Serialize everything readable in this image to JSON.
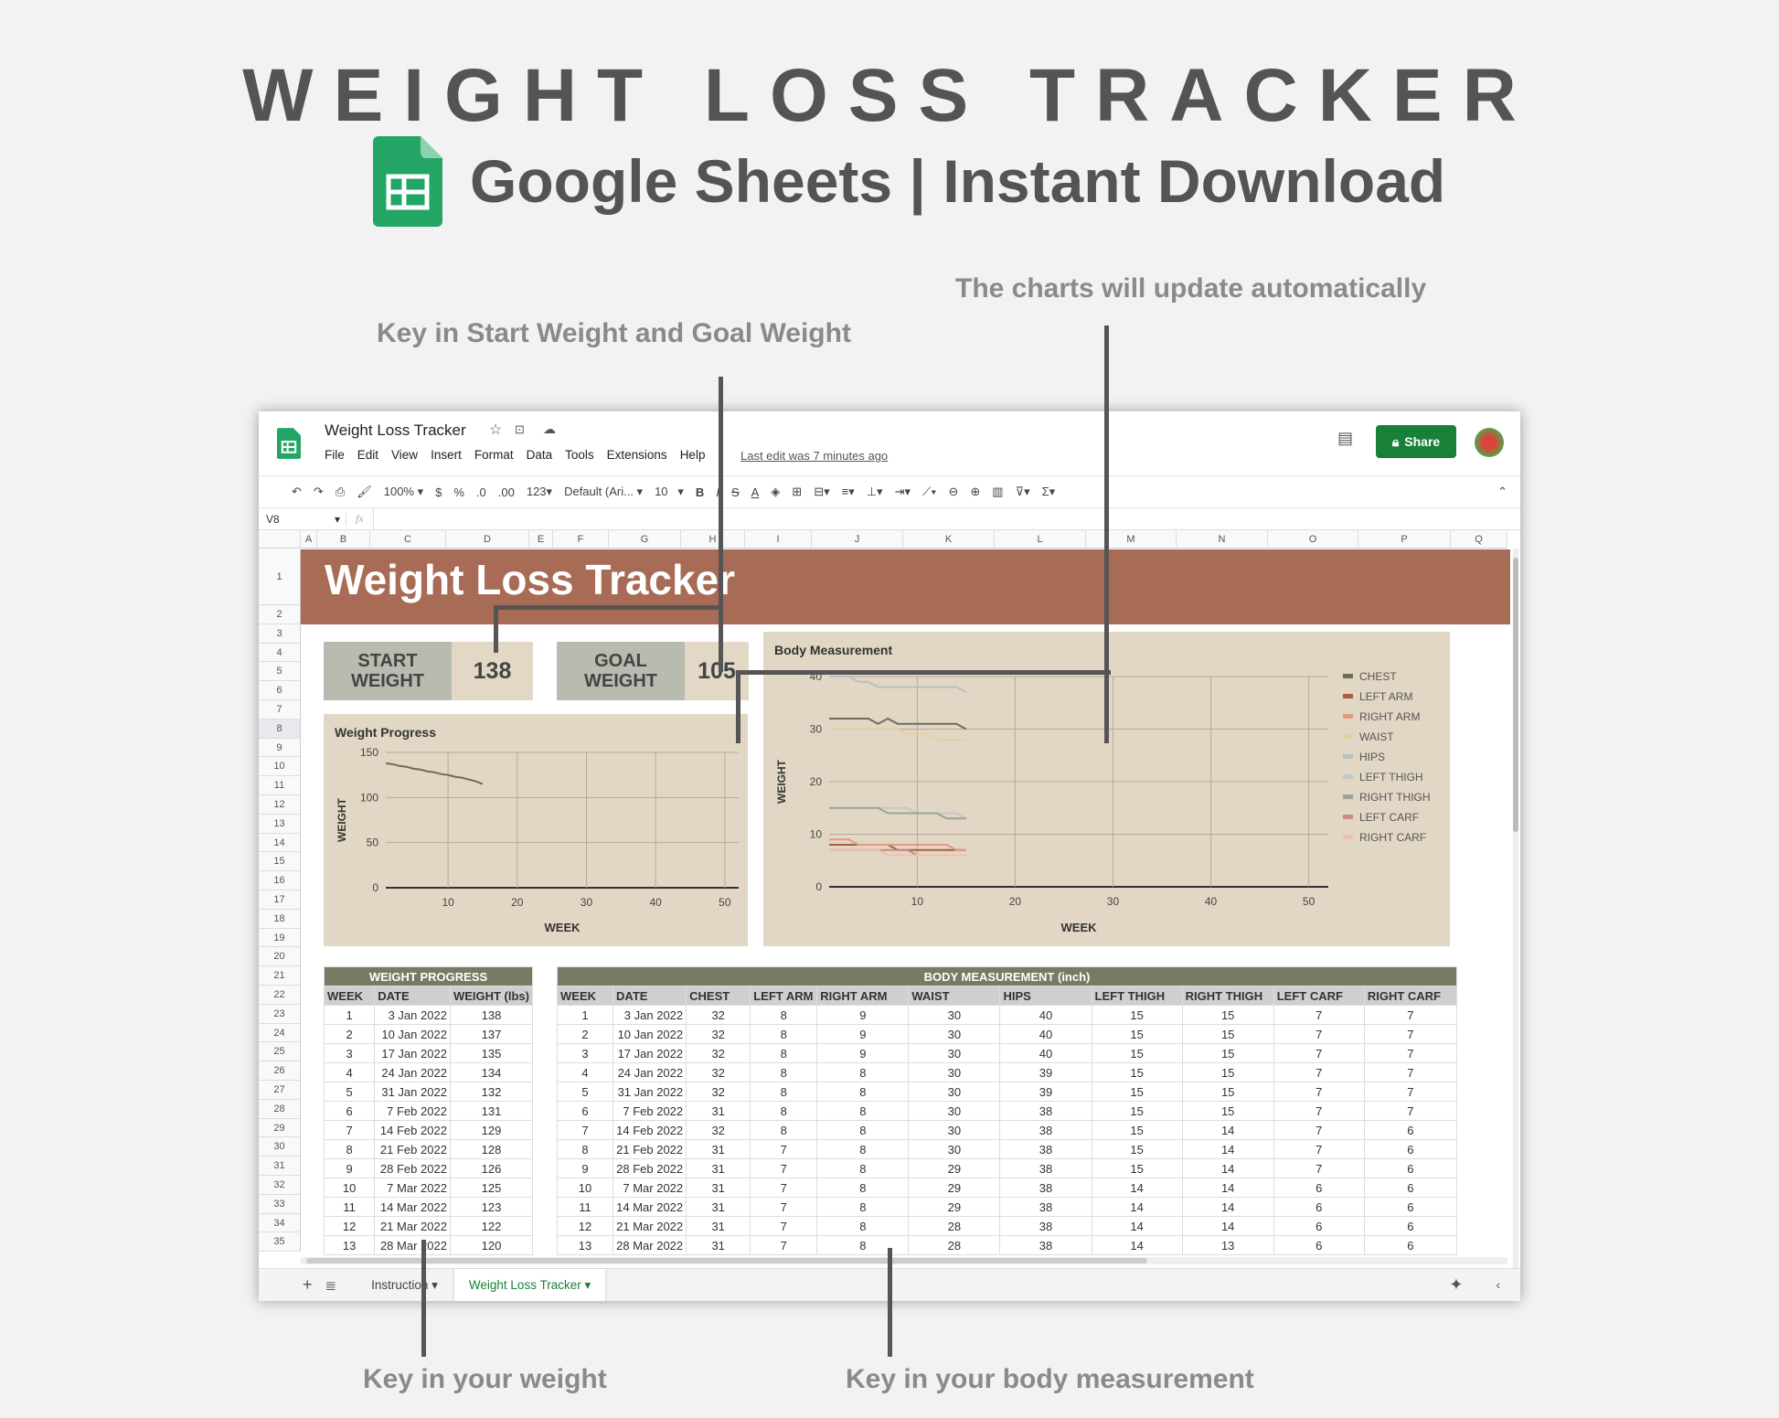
{
  "hero": {
    "title": "WEIGHT LOSS TRACKER",
    "subtitle": "Google Sheets | Instant Download"
  },
  "notes": {
    "start_goal": "Key in Start Weight and Goal Weight",
    "charts": "The charts will update automatically",
    "weight": "Key in your weight",
    "body": "Key in your body measurement"
  },
  "app": {
    "doc_title": "Weight Loss Tracker",
    "menu": [
      "File",
      "Edit",
      "View",
      "Insert",
      "Format",
      "Data",
      "Tools",
      "Extensions",
      "Help"
    ],
    "last_edit": "Last edit was 7 minutes ago",
    "share": "Share",
    "zoom": "100%",
    "currency": "$",
    "percent": "%",
    "dec_less": ".0",
    "dec_more": ".00",
    "format": "123",
    "font": "Default (Ari...",
    "font_size": "10",
    "cell_ref": "V8",
    "fx": "fx",
    "accent": "#188038"
  },
  "columns": [
    "A",
    "B",
    "C",
    "D",
    "E",
    "F",
    "G",
    "H",
    "I",
    "J",
    "K",
    "L",
    "M",
    "N",
    "O",
    "P",
    "Q"
  ],
  "banner": {
    "title": "Weight Loss Tracker",
    "color": "#a86b55"
  },
  "start": {
    "label": "START WEIGHT",
    "value": "138"
  },
  "goal": {
    "label": "GOAL WEIGHT",
    "value": "105"
  },
  "weight_table": {
    "title": "WEIGHT PROGRESS",
    "headers": [
      "WEEK",
      "DATE",
      "WEIGHT (lbs)"
    ],
    "rows": [
      [
        "1",
        "3 Jan 2022",
        "138"
      ],
      [
        "2",
        "10 Jan 2022",
        "137"
      ],
      [
        "3",
        "17 Jan 2022",
        "135"
      ],
      [
        "4",
        "24 Jan 2022",
        "134"
      ],
      [
        "5",
        "31 Jan 2022",
        "132"
      ],
      [
        "6",
        "7 Feb 2022",
        "131"
      ],
      [
        "7",
        "14 Feb 2022",
        "129"
      ],
      [
        "8",
        "21 Feb 2022",
        "128"
      ],
      [
        "9",
        "28 Feb 2022",
        "126"
      ],
      [
        "10",
        "7 Mar 2022",
        "125"
      ],
      [
        "11",
        "14 Mar 2022",
        "123"
      ],
      [
        "12",
        "21 Mar 2022",
        "122"
      ],
      [
        "13",
        "28 Mar 2022",
        "120"
      ]
    ]
  },
  "body_table": {
    "title": "BODY MEASUREMENT (inch)",
    "headers": [
      "WEEK",
      "DATE",
      "CHEST",
      "LEFT ARM",
      "RIGHT ARM",
      "WAIST",
      "HIPS",
      "LEFT THIGH",
      "RIGHT THIGH",
      "LEFT CARF",
      "RIGHT CARF"
    ],
    "rows": [
      [
        "1",
        "3 Jan 2022",
        "32",
        "8",
        "9",
        "30",
        "40",
        "15",
        "15",
        "7",
        "7"
      ],
      [
        "2",
        "10 Jan 2022",
        "32",
        "8",
        "9",
        "30",
        "40",
        "15",
        "15",
        "7",
        "7"
      ],
      [
        "3",
        "17 Jan 2022",
        "32",
        "8",
        "9",
        "30",
        "40",
        "15",
        "15",
        "7",
        "7"
      ],
      [
        "4",
        "24 Jan 2022",
        "32",
        "8",
        "8",
        "30",
        "39",
        "15",
        "15",
        "7",
        "7"
      ],
      [
        "5",
        "31 Jan 2022",
        "32",
        "8",
        "8",
        "30",
        "39",
        "15",
        "15",
        "7",
        "7"
      ],
      [
        "6",
        "7 Feb 2022",
        "31",
        "8",
        "8",
        "30",
        "38",
        "15",
        "15",
        "7",
        "7"
      ],
      [
        "7",
        "14 Feb 2022",
        "32",
        "8",
        "8",
        "30",
        "38",
        "15",
        "14",
        "7",
        "6"
      ],
      [
        "8",
        "21 Feb 2022",
        "31",
        "7",
        "8",
        "30",
        "38",
        "15",
        "14",
        "7",
        "6"
      ],
      [
        "9",
        "28 Feb 2022",
        "31",
        "7",
        "8",
        "29",
        "38",
        "15",
        "14",
        "7",
        "6"
      ],
      [
        "10",
        "7 Mar 2022",
        "31",
        "7",
        "8",
        "29",
        "38",
        "14",
        "14",
        "6",
        "6"
      ],
      [
        "11",
        "14 Mar 2022",
        "31",
        "7",
        "8",
        "29",
        "38",
        "14",
        "14",
        "6",
        "6"
      ],
      [
        "12",
        "21 Mar 2022",
        "31",
        "7",
        "8",
        "28",
        "38",
        "14",
        "14",
        "6",
        "6"
      ],
      [
        "13",
        "28 Mar 2022",
        "31",
        "7",
        "8",
        "28",
        "38",
        "14",
        "13",
        "6",
        "6"
      ]
    ]
  },
  "tabs": [
    "Instruction",
    "Weight Loss Tracker"
  ],
  "chart_data": [
    {
      "type": "line",
      "title": "Weight Progress",
      "xlabel": "WEEK",
      "ylabel": "WEIGHT",
      "xlim": [
        1,
        52
      ],
      "ylim": [
        0,
        150
      ],
      "xticks": [
        10,
        20,
        30,
        40,
        50
      ],
      "yticks": [
        0,
        50,
        100,
        150
      ],
      "grid": true,
      "x": [
        1,
        2,
        3,
        4,
        5,
        6,
        7,
        8,
        9,
        10,
        11,
        12,
        13,
        14,
        15
      ],
      "series": [
        {
          "values": [
            138,
            137,
            135,
            134,
            132,
            131,
            129,
            128,
            126,
            125,
            123,
            122,
            120,
            118,
            115
          ],
          "color": "#6b6e5a"
        }
      ]
    },
    {
      "type": "line",
      "title": "Body Measurement",
      "xlabel": "WEEK",
      "ylabel": "WEIGHT",
      "xlim": [
        1,
        52
      ],
      "ylim": [
        0,
        40
      ],
      "xticks": [
        10,
        20,
        30,
        40,
        50
      ],
      "yticks": [
        0,
        10,
        20,
        30,
        40
      ],
      "grid": true,
      "legend": "right",
      "x": [
        1,
        2,
        3,
        4,
        5,
        6,
        7,
        8,
        9,
        10,
        11,
        12,
        13,
        14,
        15
      ],
      "series": [
        {
          "name": "CHEST",
          "color": "#6b6e5a",
          "values": [
            32,
            32,
            32,
            32,
            32,
            31,
            32,
            31,
            31,
            31,
            31,
            31,
            31,
            31,
            30
          ]
        },
        {
          "name": "LEFT ARM",
          "color": "#a85c4a",
          "values": [
            8,
            8,
            8,
            8,
            8,
            8,
            8,
            7,
            7,
            7,
            7,
            7,
            7,
            7,
            7
          ]
        },
        {
          "name": "RIGHT ARM",
          "color": "#e09b80",
          "values": [
            9,
            9,
            9,
            8,
            8,
            8,
            8,
            8,
            8,
            8,
            8,
            8,
            8,
            7,
            7
          ]
        },
        {
          "name": "WAIST",
          "color": "#e4cfa5",
          "values": [
            30,
            30,
            30,
            30,
            30,
            30,
            30,
            30,
            29,
            29,
            29,
            28,
            28,
            28,
            28
          ]
        },
        {
          "name": "HIPS",
          "color": "#b6c2c0",
          "values": [
            40,
            40,
            40,
            39,
            39,
            38,
            38,
            38,
            38,
            38,
            38,
            38,
            38,
            38,
            37
          ]
        },
        {
          "name": "LEFT THIGH",
          "color": "#c5c8c8",
          "values": [
            15,
            15,
            15,
            15,
            15,
            15,
            15,
            15,
            15,
            14,
            14,
            14,
            14,
            14,
            13
          ]
        },
        {
          "name": "RIGHT THIGH",
          "color": "#9da396",
          "values": [
            15,
            15,
            15,
            15,
            15,
            15,
            14,
            14,
            14,
            14,
            14,
            14,
            13,
            13,
            13
          ]
        },
        {
          "name": "LEFT CARF",
          "color": "#c98c80",
          "values": [
            7,
            7,
            7,
            7,
            7,
            7,
            7,
            7,
            7,
            6,
            6,
            6,
            6,
            6,
            6
          ]
        },
        {
          "name": "RIGHT CARF",
          "color": "#efc0ad",
          "values": [
            7,
            7,
            7,
            7,
            7,
            7,
            6,
            6,
            6,
            6,
            6,
            6,
            6,
            6,
            6
          ]
        }
      ]
    }
  ]
}
